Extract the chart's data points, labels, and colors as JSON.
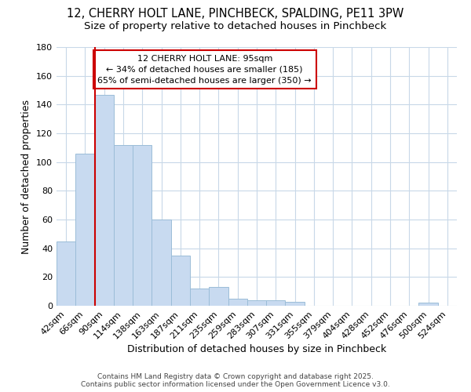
{
  "title_line1": "12, CHERRY HOLT LANE, PINCHBECK, SPALDING, PE11 3PW",
  "title_line2": "Size of property relative to detached houses in Pinchbeck",
  "xlabel": "Distribution of detached houses by size in Pinchbeck",
  "ylabel": "Number of detached properties",
  "categories": [
    "42sqm",
    "66sqm",
    "90sqm",
    "114sqm",
    "138sqm",
    "163sqm",
    "187sqm",
    "211sqm",
    "235sqm",
    "259sqm",
    "283sqm",
    "307sqm",
    "331sqm",
    "355sqm",
    "379sqm",
    "404sqm",
    "428sqm",
    "452sqm",
    "476sqm",
    "500sqm",
    "524sqm"
  ],
  "values": [
    45,
    106,
    147,
    112,
    112,
    60,
    35,
    12,
    13,
    5,
    4,
    4,
    3,
    0,
    0,
    0,
    0,
    0,
    0,
    2,
    0
  ],
  "bar_color": "#c8daf0",
  "bar_edgecolor": "#9bbdd8",
  "red_line_index": 2,
  "red_line_label": "12 CHERRY HOLT LANE: 95sqm",
  "annotation_line2": "← 34% of detached houses are smaller (185)",
  "annotation_line3": "65% of semi-detached houses are larger (350) →",
  "annotation_box_facecolor": "#ffffff",
  "annotation_box_edgecolor": "#cc0000",
  "red_line_color": "#cc0000",
  "ylim": [
    0,
    180
  ],
  "yticks": [
    0,
    20,
    40,
    60,
    80,
    100,
    120,
    140,
    160,
    180
  ],
  "fig_background": "#ffffff",
  "plot_background": "#ffffff",
  "grid_color": "#c8d8e8",
  "footer_line1": "Contains HM Land Registry data © Crown copyright and database right 2025.",
  "footer_line2": "Contains public sector information licensed under the Open Government Licence v3.0.",
  "title_fontsize": 10.5,
  "subtitle_fontsize": 9.5,
  "axis_label_fontsize": 9,
  "tick_fontsize": 8,
  "footer_fontsize": 6.5
}
